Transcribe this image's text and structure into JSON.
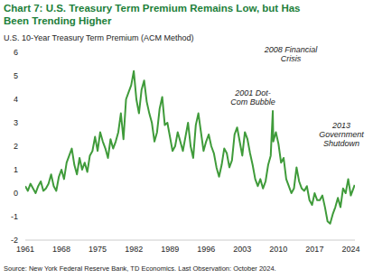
{
  "chart_data": {
    "type": "line",
    "title": "Chart 7: U.S. Treasury Term Premium Remains Low, but Has Been Trending Higher",
    "subtitle": "U.S. 10-Year Treasury Term Premium (ACM Method)",
    "source": "Source: New York Federal Reserve Bank, TD Economics. Last Observation: October 2024.",
    "annotations": [
      "2001 Dot-Com Bubble",
      "2008 Financial Crisis",
      "2013 Government Shutdown"
    ],
    "x": [
      1961,
      1961.5,
      1962,
      1962.5,
      1963,
      1963.5,
      1964,
      1964.5,
      1965,
      1965.5,
      1966,
      1966.5,
      1967,
      1967.5,
      1968,
      1968.5,
      1969,
      1969.5,
      1970,
      1970.5,
      1971,
      1971.5,
      1972,
      1972.5,
      1973,
      1973.5,
      1974,
      1974.5,
      1975,
      1975.5,
      1976,
      1976.5,
      1977,
      1977.5,
      1978,
      1978.5,
      1979,
      1979.5,
      1980,
      1980.5,
      1981,
      1981.5,
      1982,
      1982.5,
      1983,
      1983.5,
      1984,
      1984.5,
      1985,
      1985.5,
      1986,
      1986.5,
      1987,
      1987.5,
      1988,
      1988.5,
      1989,
      1989.5,
      1990,
      1990.5,
      1991,
      1991.5,
      1992,
      1992.5,
      1993,
      1993.5,
      1994,
      1994.5,
      1995,
      1995.5,
      1996,
      1996.5,
      1997,
      1997.5,
      1998,
      1998.5,
      1999,
      1999.5,
      2000,
      2000.5,
      2001,
      2001.5,
      2002,
      2002.5,
      2003,
      2003.5,
      2004,
      2004.5,
      2005,
      2005.5,
      2006,
      2006.5,
      2007,
      2007.5,
      2008,
      2008.5,
      2008.9,
      2009,
      2009.5,
      2010,
      2010.5,
      2011,
      2011.5,
      2012,
      2012.5,
      2013,
      2013.5,
      2014,
      2014.5,
      2015,
      2015.5,
      2016,
      2016.5,
      2017,
      2017.5,
      2018,
      2018.5,
      2019,
      2019.5,
      2020,
      2020.5,
      2021,
      2021.5,
      2022,
      2022.5,
      2023,
      2023.5,
      2024,
      2024.5,
      2024.75
    ],
    "series": [
      {
        "name": "U.S. 10-Year Treasury Term Premium",
        "color": "#3f9b3a",
        "values": [
          0.3,
          0.1,
          0.4,
          0.2,
          0.0,
          0.3,
          0.5,
          0.1,
          0.2,
          0.4,
          0.8,
          0.3,
          0.1,
          0.7,
          1.0,
          0.6,
          1.3,
          1.6,
          1.9,
          1.2,
          0.8,
          1.5,
          1.0,
          1.3,
          0.9,
          1.6,
          1.8,
          2.4,
          1.8,
          2.6,
          2.2,
          1.9,
          1.5,
          2.3,
          1.9,
          2.2,
          2.6,
          3.4,
          2.3,
          4.0,
          4.3,
          4.6,
          5.2,
          4.0,
          3.4,
          4.4,
          4.8,
          3.9,
          3.4,
          3.0,
          2.2,
          2.6,
          3.6,
          4.1,
          2.9,
          3.0,
          2.4,
          1.8,
          2.0,
          2.6,
          2.2,
          1.8,
          2.4,
          3.0,
          2.0,
          1.5,
          2.9,
          3.4,
          2.6,
          1.8,
          2.2,
          2.5,
          2.0,
          1.7,
          1.1,
          0.7,
          1.2,
          1.9,
          1.7,
          1.1,
          1.4,
          2.5,
          2.8,
          2.2,
          1.6,
          2.6,
          2.3,
          1.7,
          1.2,
          0.6,
          0.3,
          0.6,
          0.2,
          0.5,
          1.2,
          1.6,
          3.5,
          2.2,
          2.6,
          2.1,
          1.3,
          1.5,
          0.6,
          0.3,
          0.0,
          0.2,
          1.1,
          0.5,
          0.2,
          0.1,
          0.3,
          -0.3,
          -0.5,
          0.0,
          -0.3,
          -0.3,
          -0.1,
          -0.6,
          -1.2,
          -1.3,
          -0.9,
          -0.6,
          -0.2,
          -0.6,
          0.2,
          0.0,
          0.6,
          -0.1,
          0.2,
          0.35
        ]
      }
    ],
    "xlim": [
      1961,
      2024.8
    ],
    "xticks": [
      1961,
      1968,
      1975,
      1982,
      1989,
      1996,
      2003,
      2010,
      2017,
      2024
    ],
    "ylim": [
      -2,
      6
    ],
    "yticks": [
      -2,
      -1,
      0,
      1,
      2,
      3,
      4,
      5,
      6
    ],
    "grid": false
  }
}
